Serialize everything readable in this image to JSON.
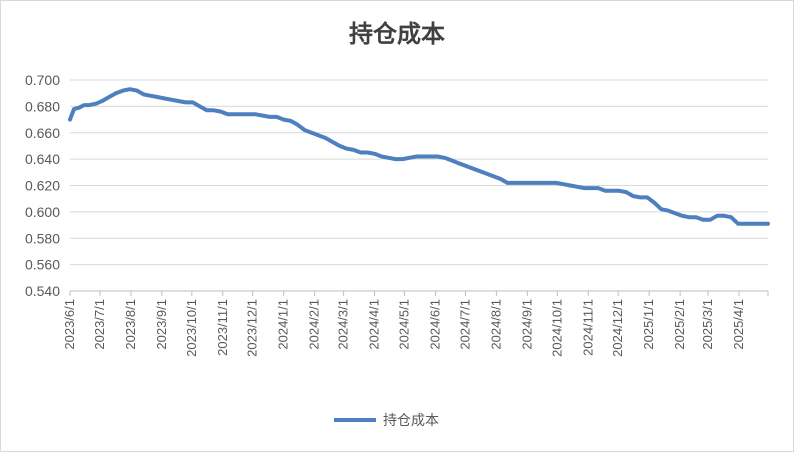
{
  "chart_data": {
    "type": "line",
    "title": "持仓成本",
    "xlabel": "",
    "ylabel": "",
    "ylim": [
      0.54,
      0.7
    ],
    "yticks": [
      "0.700",
      "0.680",
      "0.660",
      "0.640",
      "0.620",
      "0.600",
      "0.580",
      "0.560",
      "0.540"
    ],
    "xticks": [
      "2023/6/1",
      "2023/7/1",
      "2023/8/1",
      "2023/9/1",
      "2023/10/1",
      "2023/11/1",
      "2023/12/1",
      "2024/1/1",
      "2024/2/1",
      "2024/3/1",
      "2024/4/1",
      "2024/5/1",
      "2024/6/1",
      "2024/7/1",
      "2024/8/1",
      "2024/9/1",
      "2024/10/1",
      "2024/11/1",
      "2024/12/1",
      "2025/1/1",
      "2025/2/1",
      "2025/3/1",
      "2025/4/1"
    ],
    "xlim": [
      "2023-06-01",
      "2025-04-30"
    ],
    "grid": true,
    "legend": "bottom",
    "color": "#4e7fbf",
    "series": [
      {
        "name": "持仓成本",
        "points": [
          [
            "2023-06-01",
            0.67
          ],
          [
            "2023-06-05",
            0.678
          ],
          [
            "2023-06-10",
            0.679
          ],
          [
            "2023-06-15",
            0.681
          ],
          [
            "2023-06-20",
            0.681
          ],
          [
            "2023-06-27",
            0.682
          ],
          [
            "2023-07-03",
            0.684
          ],
          [
            "2023-07-10",
            0.687
          ],
          [
            "2023-07-17",
            0.69
          ],
          [
            "2023-07-24",
            0.692
          ],
          [
            "2023-07-31",
            0.693
          ],
          [
            "2023-08-07",
            0.692
          ],
          [
            "2023-08-14",
            0.689
          ],
          [
            "2023-08-21",
            0.688
          ],
          [
            "2023-08-28",
            0.687
          ],
          [
            "2023-09-04",
            0.686
          ],
          [
            "2023-09-11",
            0.685
          ],
          [
            "2023-09-18",
            0.684
          ],
          [
            "2023-09-25",
            0.683
          ],
          [
            "2023-10-02",
            0.683
          ],
          [
            "2023-10-09",
            0.68
          ],
          [
            "2023-10-16",
            0.677
          ],
          [
            "2023-10-23",
            0.677
          ],
          [
            "2023-10-30",
            0.676
          ],
          [
            "2023-11-06",
            0.674
          ],
          [
            "2023-11-13",
            0.674
          ],
          [
            "2023-11-20",
            0.674
          ],
          [
            "2023-11-27",
            0.674
          ],
          [
            "2023-12-04",
            0.674
          ],
          [
            "2023-12-11",
            0.673
          ],
          [
            "2023-12-18",
            0.672
          ],
          [
            "2023-12-25",
            0.672
          ],
          [
            "2024-01-01",
            0.67
          ],
          [
            "2024-01-08",
            0.669
          ],
          [
            "2024-01-15",
            0.666
          ],
          [
            "2024-01-22",
            0.662
          ],
          [
            "2024-01-29",
            0.66
          ],
          [
            "2024-02-05",
            0.658
          ],
          [
            "2024-02-12",
            0.656
          ],
          [
            "2024-02-19",
            0.653
          ],
          [
            "2024-02-26",
            0.65
          ],
          [
            "2024-03-04",
            0.648
          ],
          [
            "2024-03-11",
            0.647
          ],
          [
            "2024-03-18",
            0.645
          ],
          [
            "2024-03-25",
            0.645
          ],
          [
            "2024-04-01",
            0.644
          ],
          [
            "2024-04-08",
            0.642
          ],
          [
            "2024-04-15",
            0.641
          ],
          [
            "2024-04-22",
            0.64
          ],
          [
            "2024-04-29",
            0.64
          ],
          [
            "2024-05-06",
            0.641
          ],
          [
            "2024-05-13",
            0.642
          ],
          [
            "2024-05-20",
            0.642
          ],
          [
            "2024-05-27",
            0.642
          ],
          [
            "2024-06-03",
            0.642
          ],
          [
            "2024-06-10",
            0.641
          ],
          [
            "2024-06-17",
            0.639
          ],
          [
            "2024-06-24",
            0.637
          ],
          [
            "2024-07-01",
            0.635
          ],
          [
            "2024-07-08",
            0.633
          ],
          [
            "2024-07-15",
            0.631
          ],
          [
            "2024-07-22",
            0.629
          ],
          [
            "2024-07-29",
            0.627
          ],
          [
            "2024-08-05",
            0.625
          ],
          [
            "2024-08-12",
            0.622
          ],
          [
            "2024-08-19",
            0.622
          ],
          [
            "2024-08-26",
            0.622
          ],
          [
            "2024-09-02",
            0.622
          ],
          [
            "2024-09-09",
            0.622
          ],
          [
            "2024-09-16",
            0.622
          ],
          [
            "2024-09-23",
            0.622
          ],
          [
            "2024-09-30",
            0.622
          ],
          [
            "2024-10-07",
            0.621
          ],
          [
            "2024-10-14",
            0.62
          ],
          [
            "2024-10-21",
            0.619
          ],
          [
            "2024-10-28",
            0.618
          ],
          [
            "2024-11-04",
            0.618
          ],
          [
            "2024-11-11",
            0.618
          ],
          [
            "2024-11-18",
            0.616
          ],
          [
            "2024-11-25",
            0.616
          ],
          [
            "2024-12-02",
            0.616
          ],
          [
            "2024-12-09",
            0.615
          ],
          [
            "2024-12-16",
            0.612
          ],
          [
            "2024-12-23",
            0.611
          ],
          [
            "2024-12-30",
            0.611
          ],
          [
            "2025-01-06",
            0.607
          ],
          [
            "2025-01-13",
            0.602
          ],
          [
            "2025-01-20",
            0.601
          ],
          [
            "2025-01-27",
            0.599
          ],
          [
            "2025-02-03",
            0.597
          ],
          [
            "2025-02-10",
            0.596
          ],
          [
            "2025-02-17",
            0.596
          ],
          [
            "2025-02-24",
            0.594
          ],
          [
            "2025-03-03",
            0.594
          ],
          [
            "2025-03-10",
            0.597
          ],
          [
            "2025-03-17",
            0.597
          ],
          [
            "2025-03-24",
            0.596
          ],
          [
            "2025-03-31",
            0.591
          ],
          [
            "2025-04-07",
            0.591
          ],
          [
            "2025-04-14",
            0.591
          ],
          [
            "2025-04-21",
            0.591
          ],
          [
            "2025-04-30",
            0.591
          ]
        ]
      }
    ]
  }
}
